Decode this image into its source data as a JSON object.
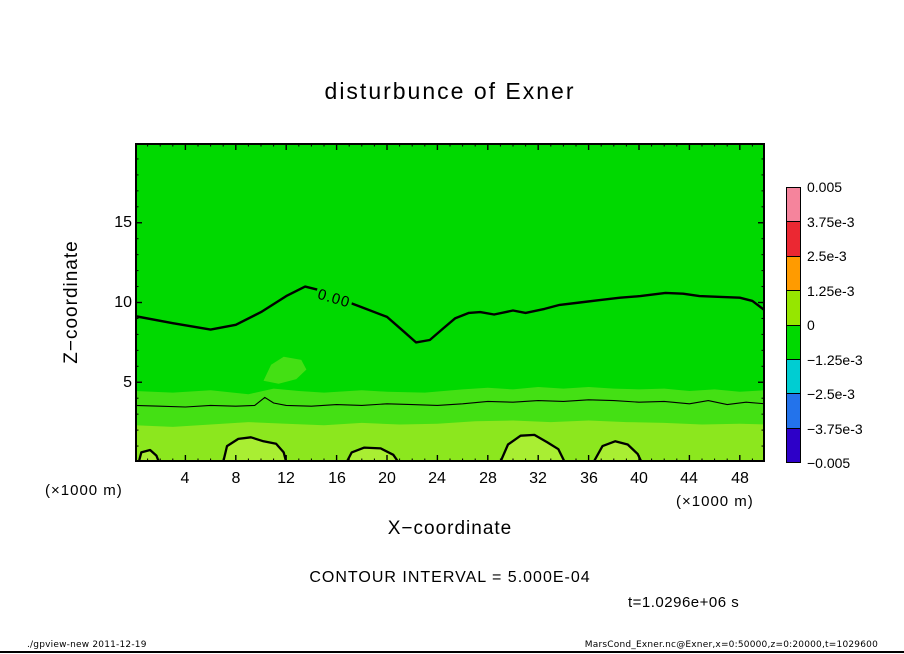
{
  "title": "disturbunce of Exner",
  "contour_label": "0.00",
  "contour_interval_text": "CONTOUR INTERVAL = 5.000E-04",
  "time_text": "t=1.0296e+06 s",
  "axes": {
    "x_label": "X−coordinate",
    "y_label": "Z−coordinate",
    "x_unit_left": "(×1000 m)",
    "x_unit_right": "(×1000 m)",
    "x_ticks": [
      "4",
      "8",
      "12",
      "16",
      "20",
      "24",
      "28",
      "32",
      "36",
      "40",
      "44",
      "48"
    ],
    "y_ticks": [
      "15",
      "10",
      "5"
    ]
  },
  "colorbar": {
    "labels": [
      "0.005",
      "3.75e-3",
      "2.5e-3",
      "1.25e-3",
      "0",
      "−1.25e-3",
      "−2.5e-3",
      "−3.75e-3",
      "−0.005"
    ],
    "colors": [
      "#f5849c",
      "#eb2832",
      "#ff9b00",
      "#96e600",
      "#00d900",
      "#00cdd2",
      "#2373eb",
      "#2d00c8"
    ]
  },
  "footer": {
    "left": "./gpview-new  2011-12-19",
    "right": "MarsCond_Exner.nc@Exner,x=0:50000,z=0:20000,t=1029600"
  },
  "chart_data": {
    "type": "heatmap",
    "subtype": "filled-contour",
    "title": "disturbunce of Exner",
    "xlabel": "X−coordinate (×1000 m)",
    "ylabel": "Z−coordinate (×1000 m)",
    "x_range": [
      0,
      50
    ],
    "z_range": [
      0,
      20
    ],
    "x_tick_values": [
      4,
      8,
      12,
      16,
      20,
      24,
      28,
      32,
      36,
      40,
      44,
      48
    ],
    "y_tick_values": [
      5,
      10,
      15
    ],
    "x_minor_step": 1,
    "y_minor_step": 1,
    "x_major_step": 4,
    "y_major_step": 5,
    "contour_interval": 0.0005,
    "time_seconds": 1029600,
    "levels": [
      0.005,
      0.00375,
      0.0025,
      0.00125,
      0,
      -0.00125,
      -0.0025,
      -0.00375,
      -0.005
    ],
    "colors": {
      "background": "#00d900",
      "blob_fill": "#a9ee33",
      "contour": "#000000"
    },
    "zero_contour": [
      [
        0,
        9.15
      ],
      [
        3,
        8.7
      ],
      [
        6,
        8.3
      ],
      [
        8,
        8.6
      ],
      [
        10,
        9.4
      ],
      [
        12,
        10.4
      ],
      [
        13.5,
        11.0
      ],
      [
        14.5,
        10.8
      ],
      [
        16,
        10.3
      ],
      [
        18,
        9.7
      ],
      [
        20,
        9.1
      ],
      [
        21.3,
        8.2
      ],
      [
        22.3,
        7.5
      ],
      [
        23.4,
        7.65
      ],
      [
        24.5,
        8.4
      ],
      [
        25.4,
        9.0
      ],
      [
        26.5,
        9.35
      ],
      [
        27.4,
        9.4
      ],
      [
        28.5,
        9.25
      ],
      [
        30,
        9.5
      ],
      [
        31,
        9.35
      ],
      [
        32.5,
        9.6
      ],
      [
        33.7,
        9.85
      ],
      [
        35.3,
        10.0
      ],
      [
        36.9,
        10.15
      ],
      [
        38.5,
        10.3
      ],
      [
        40.1,
        10.4
      ],
      [
        42.1,
        10.6
      ],
      [
        43.5,
        10.55
      ],
      [
        44.8,
        10.4
      ],
      [
        46.5,
        10.35
      ],
      [
        48,
        10.3
      ],
      [
        49,
        10.1
      ],
      [
        50,
        9.5
      ]
    ],
    "thin_contour": [
      [
        0,
        3.55
      ],
      [
        2,
        3.5
      ],
      [
        4,
        3.45
      ],
      [
        6,
        3.55
      ],
      [
        8,
        3.5
      ],
      [
        9.5,
        3.55
      ],
      [
        10.3,
        4.05
      ],
      [
        11,
        3.7
      ],
      [
        12,
        3.55
      ],
      [
        14,
        3.5
      ],
      [
        16,
        3.6
      ],
      [
        18,
        3.55
      ],
      [
        20,
        3.65
      ],
      [
        22,
        3.6
      ],
      [
        24,
        3.55
      ],
      [
        26,
        3.65
      ],
      [
        28,
        3.8
      ],
      [
        30,
        3.75
      ],
      [
        32,
        3.85
      ],
      [
        34,
        3.8
      ],
      [
        36,
        3.9
      ],
      [
        38,
        3.85
      ],
      [
        40,
        3.75
      ],
      [
        42,
        3.8
      ],
      [
        44,
        3.65
      ],
      [
        45.5,
        3.85
      ],
      [
        47,
        3.6
      ],
      [
        48.5,
        3.75
      ],
      [
        50,
        3.65
      ]
    ],
    "closed_contours": [
      {
        "points": [
          [
            0.3,
            0
          ],
          [
            0.5,
            0.6
          ],
          [
            1.2,
            0.75
          ],
          [
            1.7,
            0.4
          ],
          [
            1.9,
            0
          ]
        ]
      },
      {
        "points": [
          [
            7.0,
            0
          ],
          [
            7.3,
            1.0
          ],
          [
            8.2,
            1.45
          ],
          [
            9.2,
            1.55
          ],
          [
            10.2,
            1.3
          ],
          [
            11.2,
            1.15
          ],
          [
            11.8,
            0.6
          ],
          [
            12.0,
            0
          ]
        ]
      },
      {
        "points": [
          [
            16.8,
            0
          ],
          [
            17.2,
            0.6
          ],
          [
            18.2,
            0.9
          ],
          [
            19.5,
            0.85
          ],
          [
            20.5,
            0.45
          ],
          [
            20.9,
            0
          ]
        ]
      },
      {
        "points": [
          [
            29.0,
            0
          ],
          [
            29.6,
            1.1
          ],
          [
            30.6,
            1.65
          ],
          [
            31.7,
            1.7
          ],
          [
            32.7,
            1.25
          ],
          [
            33.6,
            0.8
          ],
          [
            34.1,
            0
          ]
        ]
      },
      {
        "points": [
          [
            36.4,
            0
          ],
          [
            37.1,
            1.0
          ],
          [
            38.1,
            1.3
          ],
          [
            39.1,
            1.1
          ],
          [
            39.9,
            0.5
          ],
          [
            40.2,
            0
          ]
        ]
      }
    ],
    "bands": [
      {
        "color": "#44e014",
        "top_edge": [
          [
            0,
            4.45
          ],
          [
            3,
            4.35
          ],
          [
            6,
            4.5
          ],
          [
            9,
            4.25
          ],
          [
            11,
            4.6
          ],
          [
            13,
            4.45
          ],
          [
            15,
            4.35
          ],
          [
            18,
            4.5
          ],
          [
            20,
            4.4
          ],
          [
            23,
            4.35
          ],
          [
            26,
            4.55
          ],
          [
            28,
            4.65
          ],
          [
            30,
            4.55
          ],
          [
            32,
            4.7
          ],
          [
            34,
            4.6
          ],
          [
            36,
            4.7
          ],
          [
            38,
            4.6
          ],
          [
            40,
            4.55
          ],
          [
            42,
            4.6
          ],
          [
            44,
            4.45
          ],
          [
            46,
            4.55
          ],
          [
            48,
            4.4
          ],
          [
            50,
            4.5
          ]
        ]
      },
      {
        "color": "#8ce71e",
        "top_edge": [
          [
            0,
            2.3
          ],
          [
            3,
            2.2
          ],
          [
            6,
            2.35
          ],
          [
            9,
            2.5
          ],
          [
            12,
            2.4
          ],
          [
            15,
            2.3
          ],
          [
            18,
            2.45
          ],
          [
            21,
            2.35
          ],
          [
            24,
            2.4
          ],
          [
            27,
            2.55
          ],
          [
            30,
            2.6
          ],
          [
            33,
            2.5
          ],
          [
            36,
            2.6
          ],
          [
            39,
            2.5
          ],
          [
            42,
            2.45
          ],
          [
            45,
            2.35
          ],
          [
            48,
            2.4
          ],
          [
            50,
            2.35
          ]
        ]
      }
    ],
    "patches": [
      {
        "color": "#44e014",
        "points": [
          [
            10.2,
            5.1
          ],
          [
            10.8,
            6.1
          ],
          [
            11.8,
            6.6
          ],
          [
            13.2,
            6.4
          ],
          [
            13.6,
            5.8
          ],
          [
            12.8,
            5.2
          ],
          [
            11.4,
            4.9
          ]
        ]
      }
    ]
  }
}
